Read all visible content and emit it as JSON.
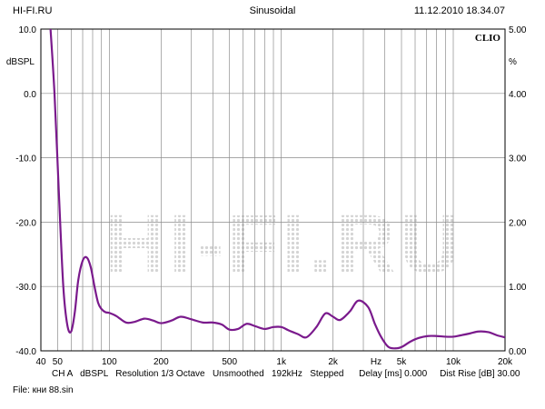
{
  "header": {
    "site": "HI-FI.RU",
    "mode": "Sinusoidal",
    "datetime": "11.12.2010 18.34.07",
    "brand": "CLIO",
    "watermark": "HI-FI.RU"
  },
  "footer": {
    "info": "CH A   dBSPL   Resolution 1/3 Octave   Unsmoothed   192kHz   Stepped      Delay [ms] 0.000     Dist Rise [dB] 30.00",
    "file": "File: кни 88.sin"
  },
  "chart_data": {
    "type": "line",
    "x_scale": "log",
    "xlim": [
      40,
      20000
    ],
    "ylim": [
      -40,
      10
    ],
    "ylim_right": [
      0,
      5
    ],
    "ylabel": "dBSPL",
    "ylabel_right": "%",
    "xlabel": "Hz",
    "grid": true,
    "line_color": "#7a1a8c",
    "x_ticks": [
      {
        "value": 40,
        "label": "40"
      },
      {
        "value": 50,
        "label": "50"
      },
      {
        "value": 100,
        "label": "100"
      },
      {
        "value": 200,
        "label": "200"
      },
      {
        "value": 500,
        "label": "500"
      },
      {
        "value": 1000,
        "label": "1k"
      },
      {
        "value": 2000,
        "label": "2k"
      },
      {
        "value": 5000,
        "label": "5k"
      },
      {
        "value": 10000,
        "label": "10k"
      },
      {
        "value": 20000,
        "label": "20k"
      }
    ],
    "y_ticks_left": [
      {
        "value": 10,
        "label": "10.0"
      },
      {
        "value": 0,
        "label": "0.0"
      },
      {
        "value": -10,
        "label": "-10.0"
      },
      {
        "value": -20,
        "label": "-20.0"
      },
      {
        "value": -30,
        "label": "-30.0"
      },
      {
        "value": -40,
        "label": "-40.0"
      }
    ],
    "y_ticks_right": [
      {
        "value": 5,
        "label": "5.00"
      },
      {
        "value": 4,
        "label": "4.00"
      },
      {
        "value": 3,
        "label": "3.00"
      },
      {
        "value": 2,
        "label": "2.00"
      },
      {
        "value": 1,
        "label": "1.00"
      },
      {
        "value": 0,
        "label": "0.00"
      }
    ],
    "x": [
      45,
      48,
      51,
      54,
      57,
      60,
      63,
      66,
      70,
      74,
      78,
      82,
      86,
      90,
      95,
      100,
      110,
      125,
      140,
      160,
      180,
      200,
      230,
      260,
      300,
      350,
      400,
      450,
      500,
      560,
      630,
      710,
      800,
      900,
      1000,
      1100,
      1250,
      1400,
      1600,
      1800,
      2000,
      2200,
      2500,
      2800,
      3200,
      3500,
      3800,
      4200,
      4700,
      5100,
      5600,
      6300,
      7100,
      8000,
      9000,
      10000,
      11000,
      12500,
      14000,
      16000,
      18000,
      20000
    ],
    "values": [
      12,
      0,
      -16,
      -30,
      -36,
      -37,
      -34,
      -29,
      -26,
      -25.5,
      -27,
      -30,
      -32.5,
      -33.5,
      -34,
      -34.1,
      -34.6,
      -35.6,
      -35.5,
      -35,
      -35.3,
      -35.7,
      -35.3,
      -34.7,
      -35.1,
      -35.6,
      -35.6,
      -35.9,
      -36.7,
      -36.6,
      -35.8,
      -36.2,
      -36.6,
      -36.3,
      -36.3,
      -36.8,
      -37.4,
      -37.9,
      -36.3,
      -34.2,
      -34.7,
      -35.2,
      -33.9,
      -32.2,
      -33.2,
      -35.8,
      -37.8,
      -39.4,
      -39.6,
      -39.3,
      -38.6,
      -38,
      -37.7,
      -37.7,
      -37.8,
      -37.8,
      -37.6,
      -37.3,
      -37,
      -37.1,
      -37.6,
      -37.9
    ]
  }
}
